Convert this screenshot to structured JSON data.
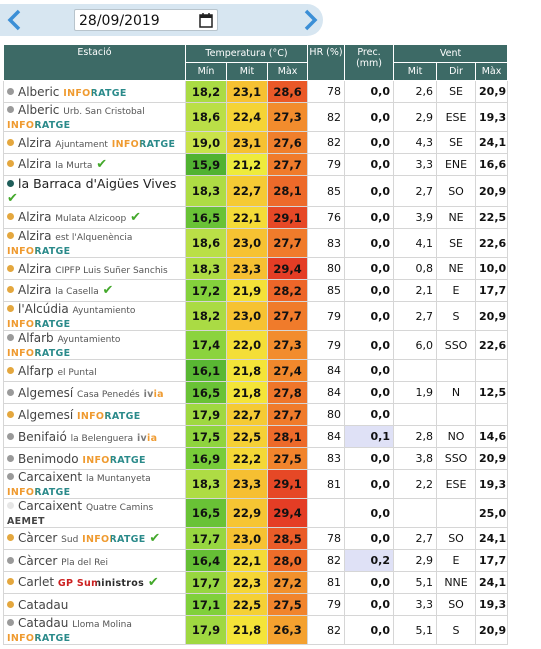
{
  "toolbar": {
    "date": "28/09/2019"
  },
  "columns": {
    "station": "Estació",
    "temperature": "Temperatura (°C)",
    "temp_sub": [
      "Mín",
      "Mit",
      "Màx"
    ],
    "hr": "HR (%)",
    "prec": "Prec. (mm)",
    "wind": "Vent",
    "wind_sub": [
      "Mit",
      "Dir",
      "Màx"
    ]
  },
  "table": {
    "rows": [
      {
        "name": "Alberic",
        "sub": null,
        "badge": "INFORATGE",
        "badge_color": [
          "#ef9a2f",
          "#2a8a8a"
        ],
        "dot": "#9a9a9a",
        "check": false,
        "cells": [
          "18,2",
          "23,1",
          "28,6",
          "78",
          "0,0",
          "2,6",
          "SE",
          "20,9"
        ]
      },
      {
        "name": "Alberic",
        "sub": "Urb. San Cristobal",
        "badge": "INFORATGE",
        "badge_color": [
          "#ef9a2f",
          "#2a8a8a"
        ],
        "dot": "#9a9a9a",
        "check": false,
        "cells": [
          "18,6",
          "22,4",
          "27,3",
          "82",
          "0,0",
          "2,9",
          "ESE",
          "19,3"
        ]
      },
      {
        "name": "Alzira",
        "sub": "Ajuntament",
        "badge": "INFORATGE",
        "badge_color": [
          "#ef9a2f",
          "#2a8a8a"
        ],
        "dot": "#e4a73e",
        "check": false,
        "cells": [
          "19,0",
          "23,1",
          "27,6",
          "82",
          "0,0",
          "4,3",
          "SE",
          "24,1"
        ]
      },
      {
        "name": "Alzira",
        "sub": "la Murta",
        "badge": null,
        "badge_color": null,
        "dot": "#e4a73e",
        "check": true,
        "cells": [
          "15,9",
          "21,2",
          "27,7",
          "79",
          "0,0",
          "3,3",
          "ENE",
          "16,6"
        ]
      },
      {
        "name": "la Barraca d'Aigües Vives",
        "sub": null,
        "badge": null,
        "badge_color": null,
        "dot": "#1f5e5a",
        "check": true,
        "cells": [
          "18,3",
          "22,7",
          "28,1",
          "85",
          "0,0",
          "2,7",
          "SO",
          "20,9"
        ]
      },
      {
        "name": "Alzira",
        "sub": "Mulata Alzicoop",
        "badge": null,
        "badge_color": null,
        "dot": "#e4a73e",
        "check": true,
        "cells": [
          "16,5",
          "22,1",
          "29,1",
          "76",
          "0,0",
          "3,9",
          "NE",
          "22,5"
        ]
      },
      {
        "name": "Alzira",
        "sub": "est l'Alquenència",
        "badge": "INFORATGE",
        "badge_color": [
          "#ef9a2f",
          "#2a8a8a"
        ],
        "dot": "#e4a73e",
        "check": false,
        "cells": [
          "18,6",
          "23,0",
          "27,7",
          "83",
          "0,0",
          "4,1",
          "SE",
          "22,6"
        ]
      },
      {
        "name": "Alzira",
        "sub": "CIPFP Luis Suñer Sanchis",
        "badge": null,
        "badge_color": null,
        "dot": "#e4a73e",
        "check": false,
        "cells": [
          "18,3",
          "23,3",
          "29,4",
          "80",
          "0,0",
          "0,8",
          "NE",
          "10,0"
        ]
      },
      {
        "name": "Alzira",
        "sub": "la Casella",
        "badge": null,
        "badge_color": null,
        "dot": "#e4a73e",
        "check": true,
        "cells": [
          "17,2",
          "21,9",
          "28,2",
          "85",
          "0,0",
          "2,1",
          "E",
          "17,7"
        ]
      },
      {
        "name": "l'Alcúdia",
        "sub": "Ayuntamiento",
        "badge": "INFORATGE",
        "badge_color": [
          "#ef9a2f",
          "#2a8a8a"
        ],
        "dot": "#e4a73e",
        "check": false,
        "cells": [
          "18,2",
          "23,0",
          "27,7",
          "79",
          "0,0",
          "2,7",
          "S",
          "20,9"
        ]
      },
      {
        "name": "Alfarb",
        "sub": "Ayuntamiento",
        "badge": "INFORATGE",
        "badge_color": [
          "#ef9a2f",
          "#2a8a8a"
        ],
        "dot": "#9a9a9a",
        "check": false,
        "cells": [
          "17,4",
          "22,0",
          "27,3",
          "79",
          "0,0",
          "6,0",
          "SSO",
          "22,6"
        ]
      },
      {
        "name": "Alfarp",
        "sub": "el Puntal",
        "badge": null,
        "badge_color": null,
        "dot": "#e4a73e",
        "check": false,
        "cells": [
          "16,1",
          "21,8",
          "27,4",
          "84",
          "0,0",
          null,
          null,
          null
        ]
      },
      {
        "name": "Algemesí",
        "sub": "Casa Penedés",
        "badge": "ivia",
        "badge_color": [
          "#7a7a7a",
          "#ef9a2f"
        ],
        "dot": "#9a9a9a",
        "check": false,
        "cells": [
          "16,5",
          "21,8",
          "27,8",
          "84",
          "0,0",
          "1,9",
          "N",
          "12,5"
        ]
      },
      {
        "name": "Algemesí",
        "sub": null,
        "badge": "INFORATGE",
        "badge_color": [
          "#ef9a2f",
          "#2a8a8a"
        ],
        "dot": "#e4a73e",
        "check": false,
        "cells": [
          "17,9",
          "22,7",
          "27,7",
          "80",
          "0,0",
          null,
          null,
          null
        ]
      },
      {
        "name": "Benifaió",
        "sub": "la Belenguera",
        "badge": "ivia",
        "badge_color": [
          "#7a7a7a",
          "#ef9a2f"
        ],
        "dot": "#9a9a9a",
        "check": false,
        "cells": [
          "17,5",
          "22,5",
          "28,1",
          "84",
          "0,1",
          "2,8",
          "NO",
          "14,6"
        ]
      },
      {
        "name": "Benimodo",
        "sub": null,
        "badge": "INFORATGE",
        "badge_color": [
          "#ef9a2f",
          "#2a8a8a"
        ],
        "dot": "#9a9a9a",
        "check": false,
        "cells": [
          "16,9",
          "22,2",
          "27,5",
          "83",
          "0,0",
          "3,8",
          "SSO",
          "20,9"
        ]
      },
      {
        "name": "Carcaixent",
        "sub": "la Muntanyeta",
        "badge": "INFORATGE",
        "badge_color": [
          "#ef9a2f",
          "#2a8a8a"
        ],
        "dot": "#9a9a9a",
        "check": false,
        "cells": [
          "18,3",
          "23,3",
          "29,1",
          "81",
          "0,0",
          "2,2",
          "ESE",
          "19,3"
        ]
      },
      {
        "name": "Carcaixent",
        "sub": "Quatre Camins",
        "badge": "AEMET",
        "badge_color": [
          "#444444",
          "#444444"
        ],
        "dot": "#e6e6e6",
        "check": false,
        "cells": [
          "16,5",
          "22,9",
          "29,4",
          null,
          "0,0",
          null,
          null,
          "25,0"
        ]
      },
      {
        "name": "Càrcer",
        "sub": "Sud",
        "badge": "INFORATGE",
        "badge_color": [
          "#ef9a2f",
          "#2a8a8a"
        ],
        "dot": "#e4a73e",
        "check": true,
        "cells": [
          "17,7",
          "23,0",
          "28,5",
          "78",
          "0,0",
          "2,7",
          "SO",
          "24,1"
        ]
      },
      {
        "name": "Càrcer",
        "sub": "Pla del Rei",
        "badge": null,
        "badge_color": null,
        "dot": "#9a9a9a",
        "check": false,
        "cells": [
          "16,4",
          "22,1",
          "28,0",
          "82",
          "0,2",
          "2,9",
          "E",
          "17,7"
        ]
      },
      {
        "name": "Carlet",
        "sub": null,
        "badge": "GP Suministros",
        "badge_color": [
          "#cc1f1f",
          "#2b2b2b"
        ],
        "dot": "#e4a73e",
        "check": true,
        "cells": [
          "17,7",
          "22,3",
          "27,2",
          "81",
          "0,0",
          "5,1",
          "NNE",
          "24,1"
        ]
      },
      {
        "name": "Catadau",
        "sub": null,
        "badge": null,
        "badge_color": null,
        "dot": "#e4a73e",
        "check": false,
        "cells": [
          "17,1",
          "22,5",
          "27,5",
          "79",
          "0,0",
          "3,3",
          "SO",
          "19,3"
        ]
      },
      {
        "name": "Catadau",
        "sub": "Lloma Molina",
        "badge": "INFORATGE",
        "badge_color": [
          "#ef9a2f",
          "#2a8a8a"
        ],
        "dot": "#9a9a9a",
        "check": false,
        "cells": [
          "17,9",
          "21,8",
          "26,3",
          "82",
          "0,0",
          "5,1",
          "S",
          "20,9"
        ]
      }
    ]
  }
}
